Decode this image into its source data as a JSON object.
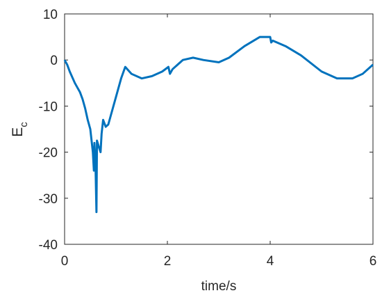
{
  "chart_data": {
    "type": "line",
    "xlabel": "time/s",
    "ylabel": {
      "text": "E",
      "subscript": "c"
    },
    "x": [
      0,
      0.05,
      0.1,
      0.2,
      0.25,
      0.3,
      0.35,
      0.4,
      0.45,
      0.5,
      0.55,
      0.57,
      0.58,
      0.6,
      0.62,
      0.63,
      0.67,
      0.7,
      0.72,
      0.75,
      0.8,
      0.85,
      0.9,
      1.0,
      1.1,
      1.18,
      1.3,
      1.5,
      1.7,
      1.9,
      2.02,
      2.05,
      2.1,
      2.3,
      2.5,
      2.7,
      3.0,
      3.2,
      3.5,
      3.8,
      4.0,
      4.02,
      4.05,
      4.3,
      4.6,
      5.0,
      5.3,
      5.6,
      5.8,
      6.0
    ],
    "series": [
      {
        "color": "#0072bd",
        "values": [
          0,
          -1,
          -2.5,
          -5,
          -6,
          -7,
          -8.5,
          -10.5,
          -13,
          -15,
          -20,
          -24,
          -18,
          -22,
          -33,
          -17.5,
          -19,
          -20,
          -16,
          -13,
          -14.5,
          -14,
          -12,
          -8,
          -4,
          -1.5,
          -3,
          -4,
          -3.5,
          -2.5,
          -1.5,
          -3,
          -2,
          0,
          0.5,
          0,
          -0.5,
          0.5,
          3,
          5,
          5,
          3.8,
          4.2,
          3,
          1,
          -2.5,
          -4,
          -4,
          -3,
          -1
        ]
      }
    ],
    "xlim": [
      0,
      6
    ],
    "xticks": [
      0,
      2,
      4,
      6
    ],
    "ylim": [
      -40,
      10
    ],
    "yticks": [
      -40,
      -30,
      -20,
      -10,
      0,
      10
    ]
  }
}
